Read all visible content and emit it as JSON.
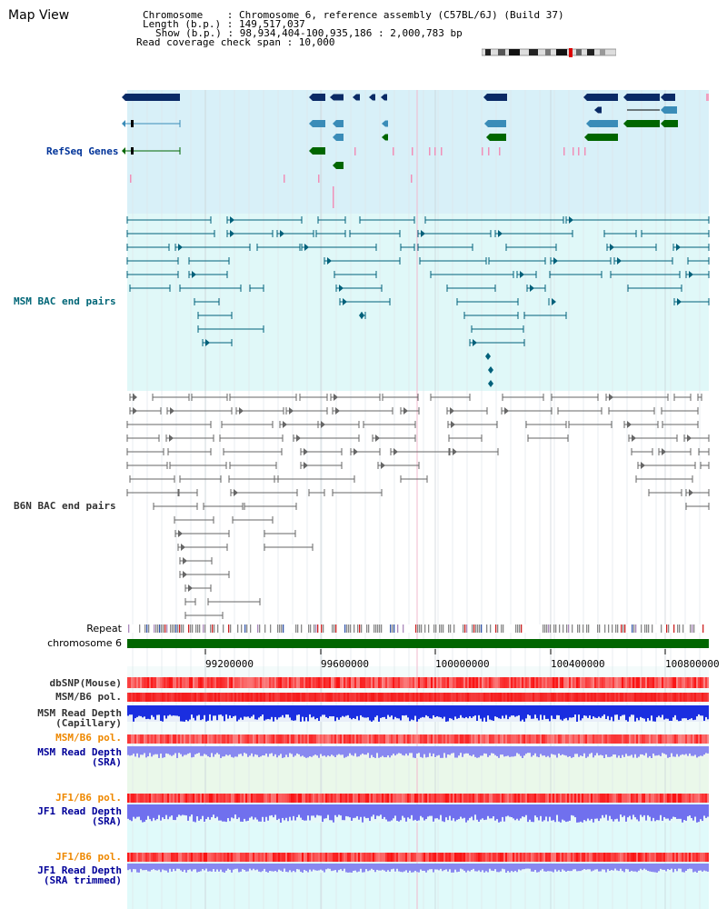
{
  "view_title": "Map View",
  "info": {
    "chromosome_line": "Chromosome    : Chromosome 6, reference assembly (C57BL/6J) (Build 37)",
    "length_line": "Length (b.p.) : 149,517,037",
    "show_line": "Show (b.p.) : 98,934,404-100,935,186 : 2,000,783 bp",
    "coverage_line": "Read coverage check span : 10,000"
  },
  "tracks": {
    "refseq": "RefSeq Genes",
    "msm_bac": "MSM BAC end pairs",
    "b6n_bac": "B6N BAC end pairs",
    "repeat": "Repeat",
    "chromosome": "chromosome 6"
  },
  "axis": {
    "ticks": [
      "99200000",
      "99600000",
      "100000000",
      "100400000",
      "100800000"
    ]
  },
  "lower_tracks": {
    "dbsnp": "dbSNP(Mouse)",
    "msm_pol_1": "MSM/B6 pol.",
    "msm_depth_cap": "MSM Read Depth\n(Capillary)",
    "msm_pol_2": "MSM/B6 pol.",
    "msm_depth_sra": "MSM Read Depth\n(SRA)",
    "jf1_pol_1": "JF1/B6 pol.",
    "jf1_depth_sra": "JF1 Read Depth\n(SRA)",
    "jf1_pol_2": "JF1/B6 pol.",
    "jf1_depth_trim": "JF1 Read Depth\n(SRA trimmed)"
  },
  "colors": {
    "refseq_bg": "#d8f0f8",
    "msm_bg": "#e0f8f8",
    "gene_dark": "#0a2a66",
    "gene_mid": "#3a8cb8",
    "gene_green": "#006600",
    "msm_pair": "#00607a",
    "b6n_pair": "#666666",
    "chromosome_bar": "#006600",
    "label_refseq": "#003399",
    "label_msm": "#006677",
    "label_b6n": "#333333",
    "label_orange": "#ee8800",
    "label_blue": "#000099"
  }
}
